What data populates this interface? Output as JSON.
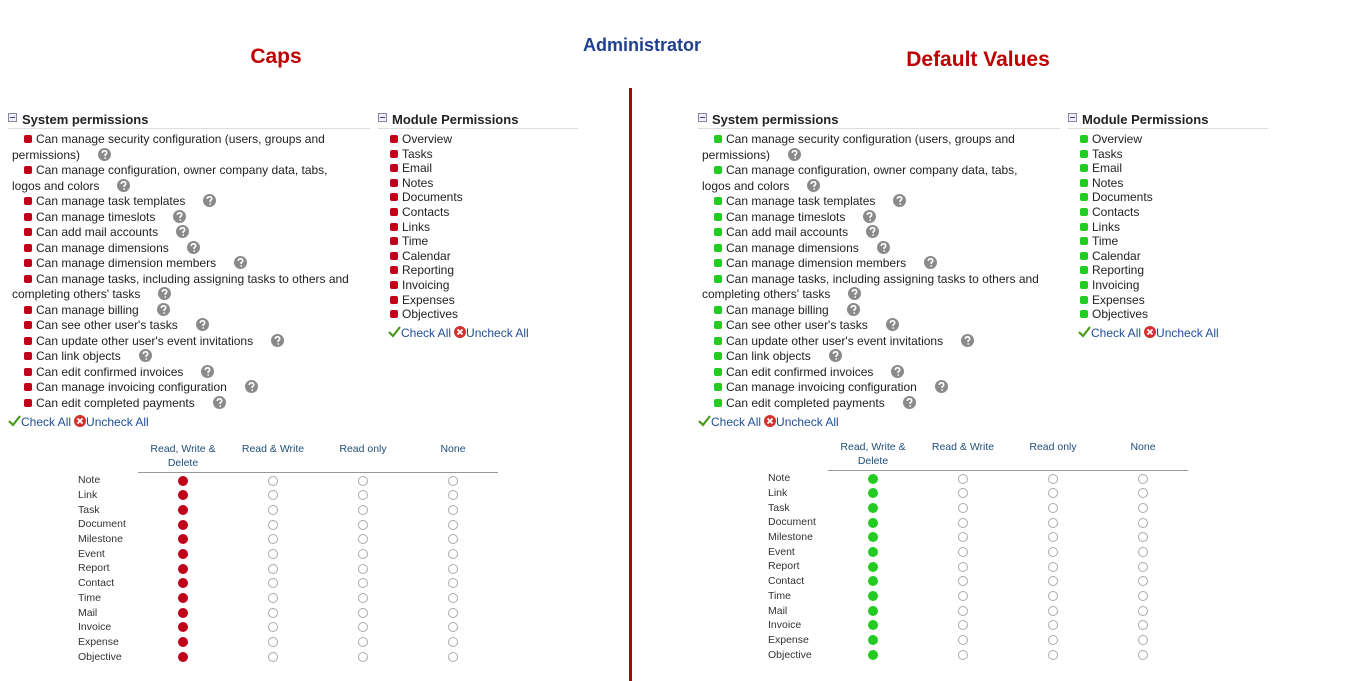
{
  "title": "Administrator",
  "title_color": "#1f3f8f",
  "divider_color": "#b00000",
  "panels": [
    {
      "heading": "Caps",
      "heading_color": "#c00000",
      "marker_color": "#c0001a",
      "selected": 0,
      "system_title": "System permissions",
      "system": [
        "Can manage security configuration (users, groups and permissions)",
        "Can manage configuration, owner company data, tabs, logos and colors",
        "Can manage task templates",
        "Can manage timeslots",
        "Can add mail accounts",
        "Can manage dimensions",
        "Can manage dimension members",
        "Can manage tasks, including assigning tasks to others and completing others' tasks",
        "Can manage billing",
        "Can see other user's tasks",
        "Can update other user's event invitations",
        "Can link objects",
        "Can edit confirmed invoices",
        "Can manage invoicing configuration",
        "Can edit completed payments"
      ],
      "module_title": "Module Permissions",
      "modules": [
        "Overview",
        "Tasks",
        "Email",
        "Notes",
        "Documents",
        "Contacts",
        "Links",
        "Time",
        "Calendar",
        "Reporting",
        "Invoicing",
        "Expenses",
        "Objectives"
      ],
      "check_all": "Check All",
      "uncheck_all": "Uncheck All",
      "columns": [
        "Read, Write & Delete",
        "Read & Write",
        "Read only",
        "None"
      ],
      "rows": [
        "Note",
        "Link",
        "Task",
        "Document",
        "Milestone",
        "Event",
        "Report",
        "Contact",
        "Time",
        "Mail",
        "Invoice",
        "Expense",
        "Objective"
      ]
    },
    {
      "heading": "Default Values",
      "heading_color": "#c00000",
      "marker_color": "#22cc22",
      "selected": 0,
      "system_title": "System permissions",
      "system": [
        "Can manage security configuration (users, groups and permissions)",
        "Can manage configuration, owner company data, tabs, logos and colors",
        "Can manage task templates",
        "Can manage timeslots",
        "Can add mail accounts",
        "Can manage dimensions",
        "Can manage dimension members",
        "Can manage tasks, including assigning tasks to others and completing others' tasks",
        "Can manage billing",
        "Can see other user's tasks",
        "Can update other user's event invitations",
        "Can link objects",
        "Can edit confirmed invoices",
        "Can manage invoicing configuration",
        "Can edit completed payments"
      ],
      "module_title": "Module Permissions",
      "modules": [
        "Overview",
        "Tasks",
        "Email",
        "Notes",
        "Documents",
        "Contacts",
        "Links",
        "Time",
        "Calendar",
        "Reporting",
        "Invoicing",
        "Expenses",
        "Objectives"
      ],
      "check_all": "Check All",
      "uncheck_all": "Uncheck All",
      "columns": [
        "Read, Write & Delete",
        "Read & Write",
        "Read only",
        "None"
      ],
      "rows": [
        "Note",
        "Link",
        "Task",
        "Document",
        "Milestone",
        "Event",
        "Report",
        "Contact",
        "Time",
        "Mail",
        "Invoice",
        "Expense",
        "Objective"
      ]
    }
  ]
}
